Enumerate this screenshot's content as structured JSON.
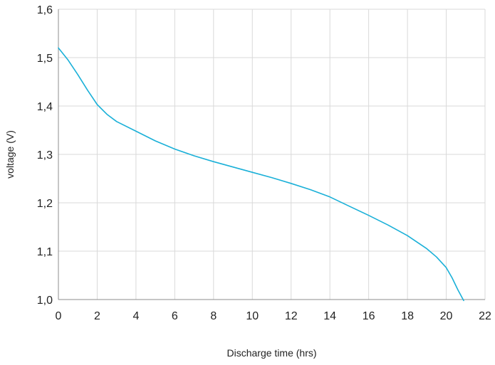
{
  "chart_data": {
    "type": "line",
    "title": "",
    "xlabel": "Discharge time (hrs)",
    "ylabel": "voltage (V)",
    "xlim": [
      0,
      22
    ],
    "ylim": [
      1.0,
      1.6
    ],
    "x_ticks": [
      0,
      2,
      4,
      6,
      8,
      10,
      12,
      14,
      16,
      18,
      20,
      22
    ],
    "x_tick_labels": [
      "0",
      "2",
      "4",
      "6",
      "8",
      "10",
      "12",
      "14",
      "16",
      "18",
      "20",
      "22"
    ],
    "y_ticks": [
      1.0,
      1.1,
      1.2,
      1.3,
      1.4,
      1.5,
      1.6
    ],
    "y_tick_labels": [
      "1,0",
      "1,1",
      "1,2",
      "1,3",
      "1,4",
      "1,5",
      "1,6"
    ],
    "grid": true,
    "series": [
      {
        "color": "#1ab0d8",
        "x": [
          0,
          0.5,
          1,
          1.5,
          2,
          2.5,
          3,
          4,
          5,
          6,
          7,
          8,
          9,
          10,
          11,
          12,
          13,
          14,
          15,
          16,
          17,
          18,
          19,
          19.5,
          20,
          20.3,
          20.6,
          20.9
        ],
        "y": [
          1.52,
          1.495,
          1.465,
          1.433,
          1.403,
          1.383,
          1.368,
          1.348,
          1.328,
          1.311,
          1.297,
          1.285,
          1.274,
          1.263,
          1.252,
          1.24,
          1.227,
          1.212,
          1.193,
          1.174,
          1.154,
          1.132,
          1.105,
          1.088,
          1.066,
          1.045,
          1.02,
          0.998
        ]
      }
    ]
  }
}
